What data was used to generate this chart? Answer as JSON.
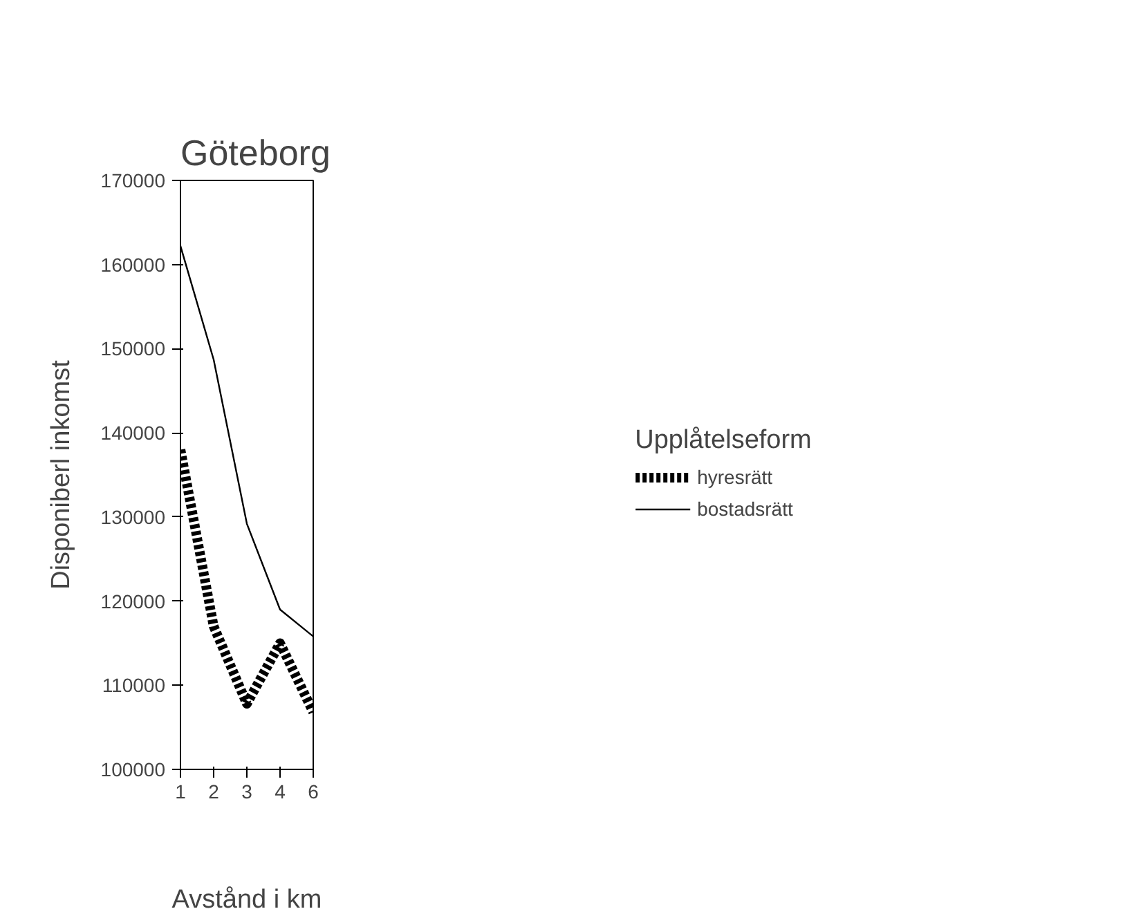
{
  "chart_data": {
    "type": "line",
    "title": "Göteborg",
    "xlabel": "Avstånd i km",
    "ylabel": "Disponiberl inkomst",
    "legend_title": "Upplåtelseform",
    "legend": "right",
    "grid": false,
    "categories": [
      "1",
      "2",
      "3",
      "4",
      "6"
    ],
    "ylim": [
      100000,
      170000
    ],
    "yticks": [
      100000,
      110000,
      120000,
      130000,
      140000,
      150000,
      160000,
      170000
    ],
    "series": [
      {
        "name": "hyresrätt",
        "color": "#000000",
        "line_style": "dashed",
        "values": [
          138000,
          117000,
          107800,
          115000,
          106800
        ]
      },
      {
        "name": "bostadsrätt",
        "color": "#000000",
        "line_style": "solid",
        "values": [
          162200,
          148700,
          129200,
          119000,
          115800
        ]
      }
    ]
  }
}
